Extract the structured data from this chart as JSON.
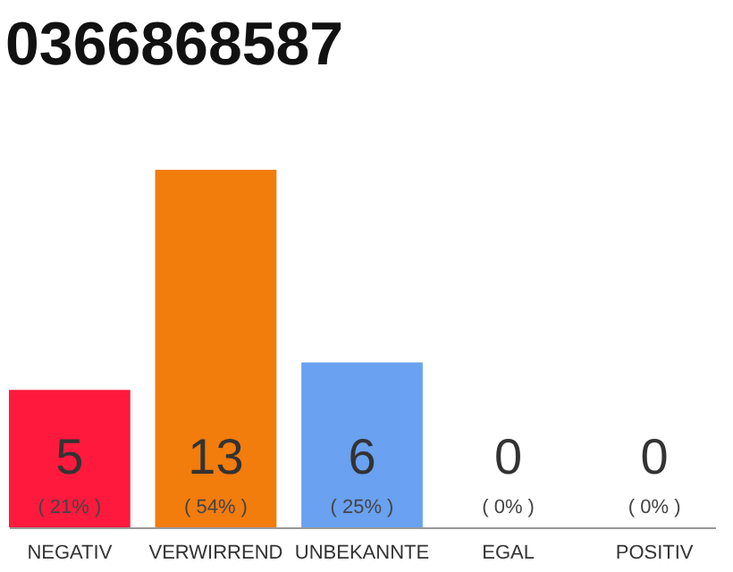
{
  "chart_data": {
    "type": "bar",
    "title": "0366868587",
    "categories": [
      "NEGATIV",
      "VERWIRREND",
      "UNBEKANNTE",
      "EGAL",
      "POSITIV"
    ],
    "values": [
      5,
      13,
      6,
      0,
      0
    ],
    "colors": [
      "#ff1a3d",
      "#f27c0c",
      "#6aa1f0",
      "#cccccc",
      "#cccccc"
    ],
    "data_labels": true,
    "annotations": [
      {
        "text": "( 21% )",
        "x": "NEGATIV",
        "y": 0
      },
      {
        "text": "( 54% )",
        "x": "VERWIRREND",
        "y": 0
      },
      {
        "text": "( 25% )",
        "x": "UNBEKANNTE",
        "y": 0
      },
      {
        "text": "( 0% )",
        "x": "EGAL",
        "y": 0
      },
      {
        "text": "( 0% )",
        "x": "POSITIV",
        "y": 0
      }
    ]
  }
}
